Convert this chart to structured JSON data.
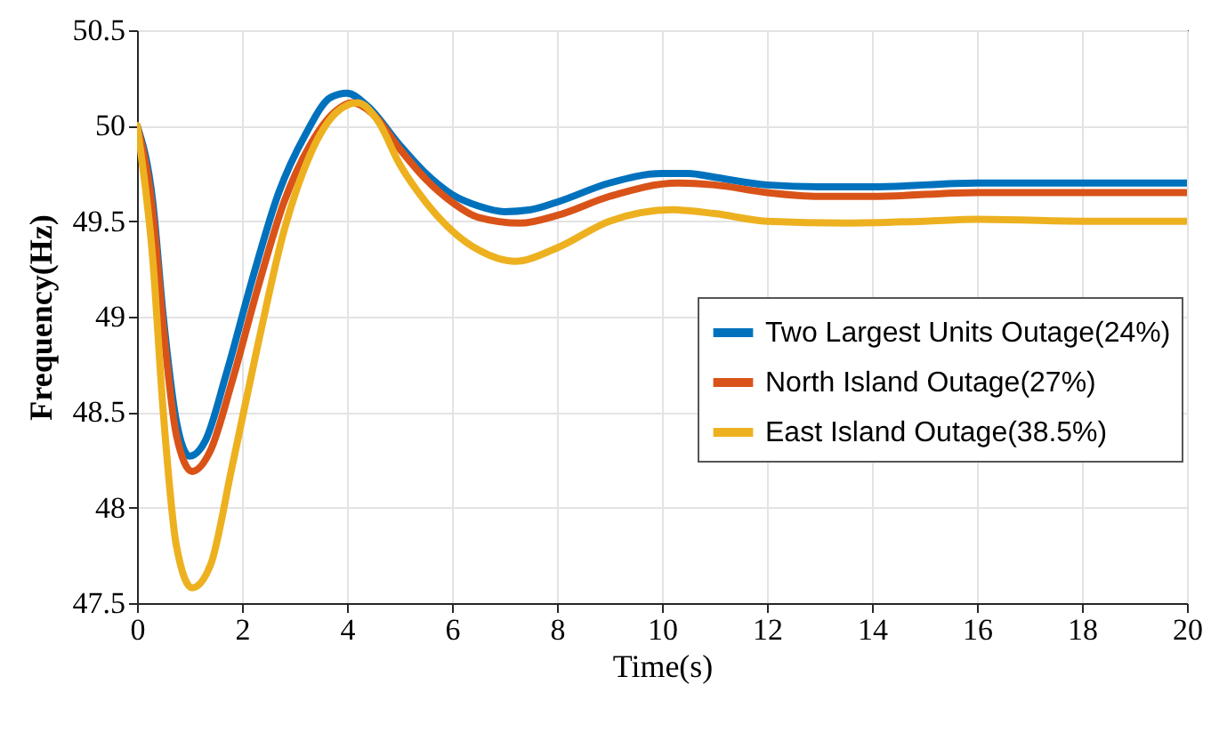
{
  "chart_data": {
    "type": "line",
    "xlabel": "Time(s)",
    "ylabel": "Frequency(Hz)",
    "xlim": [
      0,
      20
    ],
    "xticks": [
      0,
      2,
      4,
      6,
      8,
      10,
      12,
      14,
      16,
      18,
      20
    ],
    "ylim": [
      47.5,
      50.5
    ],
    "yticks": [
      47.5,
      48,
      48.5,
      49,
      49.5,
      50,
      50.5
    ],
    "grid": true,
    "legend": "right",
    "series": [
      {
        "name": "Two Largest Units Outage(24%)",
        "color": "#0072bd",
        "x": [
          0,
          0.3,
          0.5,
          0.75,
          1.0,
          1.3,
          1.7,
          2.2,
          2.7,
          3.2,
          3.7,
          4.0,
          4.4,
          5,
          5.5,
          6,
          6.5,
          7,
          7.5,
          8,
          9,
          10,
          10.5,
          11,
          12,
          13,
          14,
          16,
          18,
          20
        ],
        "values": [
          50,
          49.6,
          49.0,
          48.45,
          48.27,
          48.35,
          48.7,
          49.2,
          49.65,
          49.95,
          50.15,
          50.17,
          50.1,
          49.9,
          49.75,
          49.64,
          49.58,
          49.55,
          49.56,
          49.6,
          49.7,
          49.75,
          49.75,
          49.73,
          49.69,
          49.68,
          49.68,
          49.7,
          49.7,
          49.7
        ]
      },
      {
        "name": "North Island Outage(27%)",
        "color": "#d95319",
        "x": [
          0,
          0.3,
          0.5,
          0.75,
          1.05,
          1.4,
          1.8,
          2.3,
          2.8,
          3.3,
          3.8,
          4.1,
          4.5,
          5,
          5.5,
          6,
          6.5,
          7.3,
          8,
          9,
          10.3,
          11,
          12,
          13,
          14,
          16,
          18,
          20
        ],
        "values": [
          50,
          49.55,
          48.95,
          48.38,
          48.19,
          48.3,
          48.65,
          49.15,
          49.6,
          49.9,
          50.08,
          50.12,
          50.06,
          49.88,
          49.72,
          49.6,
          49.52,
          49.49,
          49.53,
          49.63,
          49.7,
          49.69,
          49.65,
          49.63,
          49.63,
          49.65,
          49.65,
          49.65
        ]
      },
      {
        "name": "East Island Outage(38.5%)",
        "color": "#edb120",
        "x": [
          0,
          0.3,
          0.5,
          0.75,
          1.05,
          1.4,
          1.8,
          2.3,
          2.8,
          3.3,
          3.8,
          4.2,
          4.6,
          5,
          5.5,
          6,
          6.5,
          7.2,
          8,
          9,
          10.2,
          11,
          12,
          13.5,
          15,
          16,
          18,
          20
        ],
        "values": [
          50,
          49.3,
          48.5,
          47.8,
          47.58,
          47.7,
          48.2,
          48.85,
          49.45,
          49.85,
          50.07,
          50.12,
          50.02,
          49.8,
          49.6,
          49.45,
          49.35,
          49.29,
          49.36,
          49.5,
          49.56,
          49.54,
          49.5,
          49.49,
          49.5,
          49.51,
          49.5,
          49.5
        ]
      }
    ]
  }
}
